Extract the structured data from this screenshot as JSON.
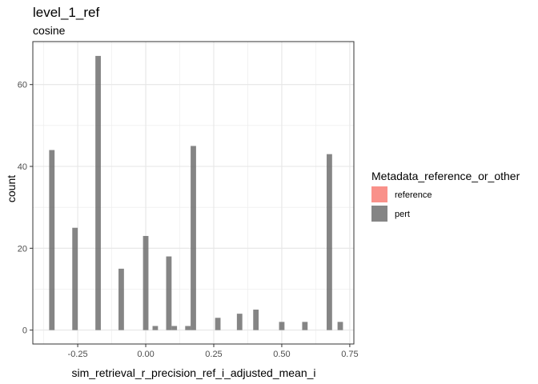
{
  "chart_data": {
    "type": "bar",
    "title": "level_1_ref",
    "subtitle": "cosine",
    "xlabel": "sim_retrieval_r_precision_ref_i_adjusted_mean_i",
    "ylabel": "count",
    "xlim": [
      -0.415,
      0.765
    ],
    "ylim": [
      -3.4,
      70.5
    ],
    "x_ticks": [
      -0.25,
      0.0,
      0.25,
      0.5,
      0.75
    ],
    "x_tick_labels": [
      "-0.25",
      "0.00",
      "0.25",
      "0.50",
      "0.75"
    ],
    "y_ticks": [
      0,
      20,
      40,
      60
    ],
    "y_tick_labels": [
      "0",
      "20",
      "40",
      "60"
    ],
    "grid": true,
    "bin_width": 0.02,
    "legend": {
      "title": "Metadata_reference_or_other",
      "position": "right",
      "entries": [
        {
          "label": "reference",
          "color": "#F8766D",
          "alpha": 0.8
        },
        {
          "label": "pert",
          "color": "#666666",
          "alpha": 0.8
        }
      ]
    },
    "series": [
      {
        "name": "reference",
        "color": "#F8766D",
        "x": [],
        "values": []
      },
      {
        "name": "pert",
        "color": "#666666",
        "x": [
          -0.345,
          -0.26,
          -0.175,
          -0.09,
          0.0,
          0.035,
          0.085,
          0.105,
          0.155,
          0.175,
          0.265,
          0.345,
          0.405,
          0.5,
          0.585,
          0.675,
          0.715
        ],
        "values": [
          44,
          25,
          67,
          15,
          23,
          1,
          18,
          1,
          1,
          45,
          3,
          4,
          5,
          2,
          2,
          43,
          2
        ]
      }
    ]
  }
}
